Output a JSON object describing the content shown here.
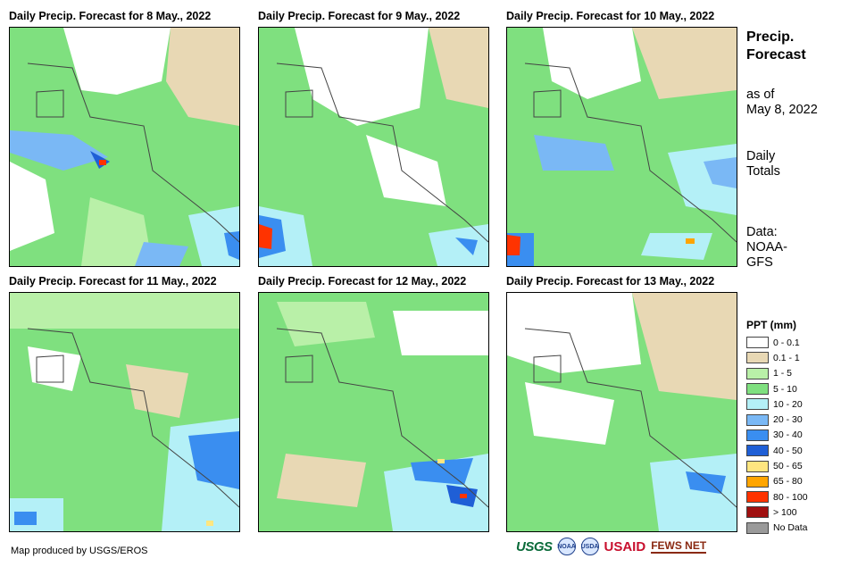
{
  "panels": [
    {
      "title": "Daily Precip. Forecast for 8 May., 2022"
    },
    {
      "title": "Daily Precip. Forecast for 9 May., 2022"
    },
    {
      "title": "Daily Precip. Forecast for 10 May., 2022"
    },
    {
      "title": "Daily Precip. Forecast for 11 May., 2022"
    },
    {
      "title": "Daily Precip. Forecast for 12 May., 2022"
    },
    {
      "title": "Daily Precip. Forecast for 13 May., 2022"
    }
  ],
  "sidebar": {
    "title_line1": "Precip.",
    "title_line2": "Forecast",
    "asof_line1": "as of",
    "asof_line2": "May 8, 2022",
    "totals_line1": "Daily",
    "totals_line2": "Totals",
    "data_line1": "Data:",
    "data_line2": "NOAA-",
    "data_line3": "GFS"
  },
  "legend": {
    "title": "PPT (mm)",
    "items": [
      {
        "label": "0 - 0.1",
        "color": "#ffffff"
      },
      {
        "label": "0.1 - 1",
        "color": "#e8d8b4"
      },
      {
        "label": "1 - 5",
        "color": "#b9f0a8"
      },
      {
        "label": "5 - 10",
        "color": "#7fe07f"
      },
      {
        "label": "10 - 20",
        "color": "#b4f0f7"
      },
      {
        "label": "20 - 30",
        "color": "#7ab8f5"
      },
      {
        "label": "30 - 40",
        "color": "#3a8ef0"
      },
      {
        "label": "40 - 50",
        "color": "#1f5fd6"
      },
      {
        "label": "50 - 65",
        "color": "#ffe680"
      },
      {
        "label": "65 - 80",
        "color": "#ffa500"
      },
      {
        "label": "80 - 100",
        "color": "#ff3300"
      },
      {
        "label": "> 100",
        "color": "#a01010"
      },
      {
        "label": "No Data",
        "color": "#9a9a9a"
      }
    ]
  },
  "footer": {
    "credit": "Map produced by USGS/EROS",
    "logo_usgs": "USGS",
    "logo_noaa": "NOAA",
    "logo_usda": "USDA",
    "logo_usaid": "USAID",
    "logo_fews": "FEWS NET"
  }
}
